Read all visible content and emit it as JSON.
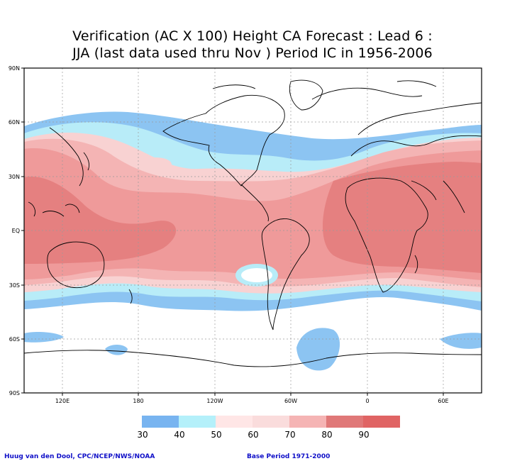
{
  "title": {
    "line1": "Verification (AC X 100) Height CA Forecast : Lead 6 :",
    "line2": "JJA (last data used thru Nov ) Period IC in 1956-2006"
  },
  "map": {
    "lat_labels": [
      "90N",
      "60N",
      "30N",
      "EQ",
      "30S",
      "60S",
      "90S"
    ],
    "lon_labels": [
      "120E",
      "180",
      "120W",
      "60W",
      "0",
      "60E"
    ]
  },
  "legend": {
    "labels": [
      "30",
      "40",
      "50",
      "60",
      "70",
      "80",
      "90"
    ],
    "colors": [
      "#78b4f0",
      "#b4f0fa",
      "#ffffff",
      "#fadcdc",
      "#f5b4b4",
      "#f09696",
      "#e07878",
      "#e06464"
    ]
  },
  "footer": {
    "credit": "Huug van den Dool, CPC/NCEP/NWS/NOAA",
    "base_period": "Base Period 1971-2000"
  }
}
